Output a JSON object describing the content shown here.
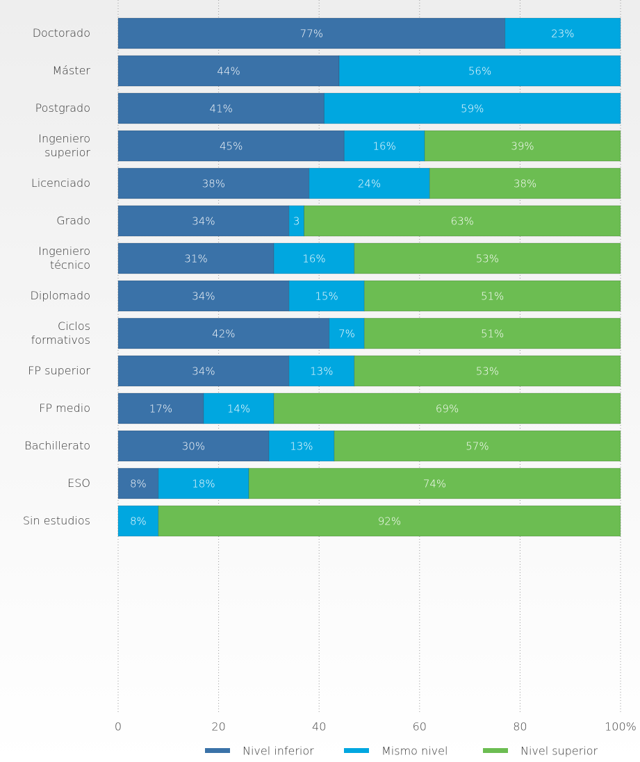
{
  "chart_data": {
    "type": "stacked-bar-horizontal",
    "categories": [
      "Doctorado",
      "Máster",
      "Postgrado",
      "Ingeniero superior",
      "Licenciado",
      "Grado",
      "Ingeniero técnico",
      "Diplomado",
      "Ciclos formativos",
      "FP superior",
      "FP medio",
      "Bachillerato",
      "ESO",
      "Sin estudios"
    ],
    "series": [
      {
        "name": "Nivel inferior",
        "color": "#3a72a8",
        "values": [
          77,
          44,
          41,
          45,
          38,
          34,
          31,
          34,
          42,
          34,
          17,
          30,
          8,
          null
        ],
        "value_labels": [
          "77%",
          "44%",
          "41%",
          "45%",
          "38%",
          "34%",
          "31%",
          "34%",
          "42%",
          "34%",
          "17%",
          "30%",
          "8%",
          null
        ]
      },
      {
        "name": "Mismo nivel",
        "color": "#00a7e0",
        "values": [
          23,
          56,
          59,
          16,
          24,
          3,
          16,
          15,
          7,
          13,
          14,
          13,
          18,
          8
        ],
        "value_labels": [
          "23%",
          "56%",
          "59%",
          "16%",
          "24%",
          "3",
          "16%",
          "15%",
          "7%",
          "13%",
          "14%",
          "13%",
          "18%",
          "8%"
        ]
      },
      {
        "name": "Nivel superior",
        "color": "#6cbd52",
        "values": [
          null,
          null,
          null,
          39,
          38,
          63,
          53,
          51,
          51,
          53,
          69,
          57,
          74,
          92
        ],
        "value_labels": [
          null,
          null,
          null,
          "39%",
          "38%",
          "63%",
          "53%",
          "51%",
          "51%",
          "53%",
          "69%",
          "57%",
          "74%",
          "92%"
        ]
      }
    ],
    "xlim": [
      0,
      100
    ],
    "xticks": [
      0,
      20,
      40,
      60,
      80,
      {
        "value": 100,
        "label": "100%"
      }
    ],
    "grid": true,
    "legend": "bottom"
  }
}
